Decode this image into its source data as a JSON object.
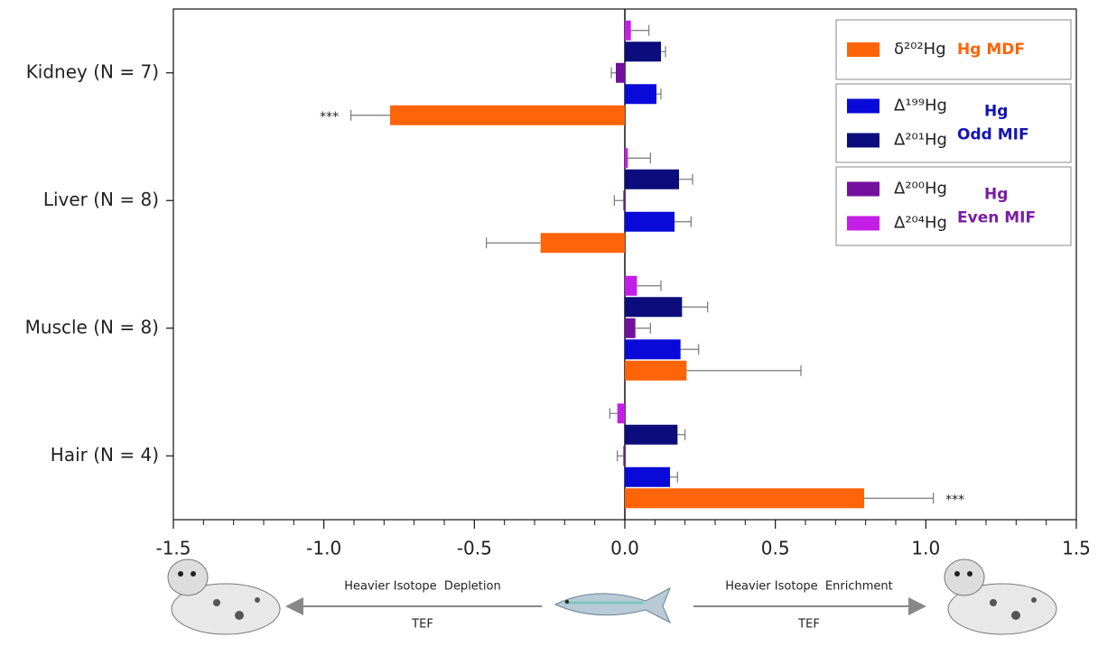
{
  "chart_data": {
    "type": "hbar_error",
    "categories": [
      "Kidney (N = 7)",
      "Liver (N = 8)",
      "Muscle (N = 8)",
      "Hair (N = 4)"
    ],
    "series": [
      {
        "name": "Δ²⁰⁴Hg",
        "color": "#c41ee6",
        "values": [
          0.02,
          0.01,
          0.04,
          -0.025
        ],
        "errors": [
          0.06,
          0.075,
          0.08,
          0.025
        ]
      },
      {
        "name": "Δ²⁰¹Hg",
        "color": "#0c0c7c",
        "values": [
          0.12,
          0.18,
          0.19,
          0.175
        ],
        "errors": [
          0.015,
          0.045,
          0.085,
          0.025
        ]
      },
      {
        "name": "Δ²⁰⁰Hg",
        "color": "#74109e",
        "values": [
          -0.03,
          -0.005,
          0.035,
          -0.005
        ],
        "errors": [
          0.015,
          0.03,
          0.05,
          0.02
        ]
      },
      {
        "name": "Δ¹⁹⁹Hg",
        "color": "#0a0ad8",
        "values": [
          0.105,
          0.165,
          0.185,
          0.15
        ],
        "errors": [
          0.015,
          0.055,
          0.06,
          0.025
        ]
      },
      {
        "name": "δ²⁰²Hg",
        "color": "#ff6408",
        "values": [
          -0.78,
          -0.28,
          0.205,
          0.795
        ],
        "errors": [
          0.13,
          0.18,
          0.38,
          0.23
        ]
      }
    ],
    "legend_groups": [
      {
        "label": [
          "Hg MDF"
        ],
        "color": "#ff6408"
      },
      {
        "label": [
          "Hg",
          "Odd MIF"
        ],
        "color": "#1414b4"
      },
      {
        "label": [
          "Hg",
          "Even MIF"
        ],
        "color": "#7a1ea4"
      }
    ],
    "annotations": [
      {
        "text": "***",
        "category": 0,
        "series": 4
      },
      {
        "text": "***",
        "category": 3,
        "series": 4
      }
    ],
    "xlim": [
      -1.5,
      1.5
    ],
    "xticks": [
      -1.5,
      {
        "value": -1,
        "label": "-1.0"
      },
      -0.5,
      {
        "value": 0,
        "label": "0.0"
      },
      0.5,
      {
        "value": 1,
        "label": "1.0"
      },
      1.5
    ],
    "xminor": [
      -1.4,
      -1.3,
      -1.2,
      -1.1,
      -0.9,
      -0.8,
      -0.7,
      -0.6,
      -0.4,
      -0.3,
      -0.2,
      -0.1,
      0.1,
      0.2,
      0.3,
      0.4,
      0.6,
      0.7,
      0.8,
      0.9,
      1.1,
      1.2,
      1.3,
      1.4
    ],
    "arrows": [
      {
        "label": "Heavier Isotope  Depletion",
        "sublabel": "TEF"
      },
      {
        "label": "Heavier Isotope  Enrichment",
        "sublabel": "TEF"
      }
    ]
  }
}
